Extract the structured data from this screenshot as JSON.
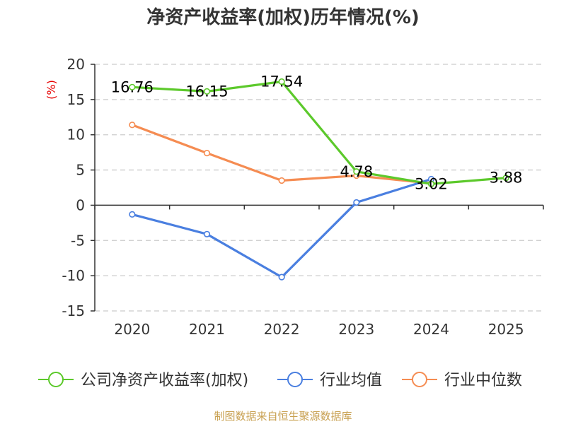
{
  "chart_data": {
    "type": "line",
    "title": "净资产收益率(加权)历年情况(%)",
    "ylabel": "(%)",
    "xlabel": "",
    "categories": [
      "2020",
      "2021",
      "2022",
      "2023",
      "2024",
      "2025"
    ],
    "ylim": [
      -15,
      20
    ],
    "yticks": [
      20,
      15,
      10,
      5,
      0,
      -5,
      -10,
      -15
    ],
    "series": [
      {
        "name": "公司净资产收益率(加权)",
        "color": "#5cc92b",
        "values": [
          16.76,
          16.15,
          17.54,
          4.78,
          3.02,
          3.88
        ],
        "data_labels": [
          "16.76",
          "16.15",
          "17.54",
          "4.78",
          "3.02",
          "3.88"
        ]
      },
      {
        "name": "行业均值",
        "color": "#4a7fe0",
        "values": [
          -1.3,
          -4.1,
          -10.2,
          0.4,
          3.7,
          null
        ]
      },
      {
        "name": "行业中位数",
        "color": "#f58c52",
        "values": [
          11.4,
          7.4,
          3.5,
          4.2,
          3.1,
          null
        ]
      }
    ],
    "grid": true,
    "legend": "bottom",
    "source": "制图数据来自恒生聚源数据库"
  }
}
